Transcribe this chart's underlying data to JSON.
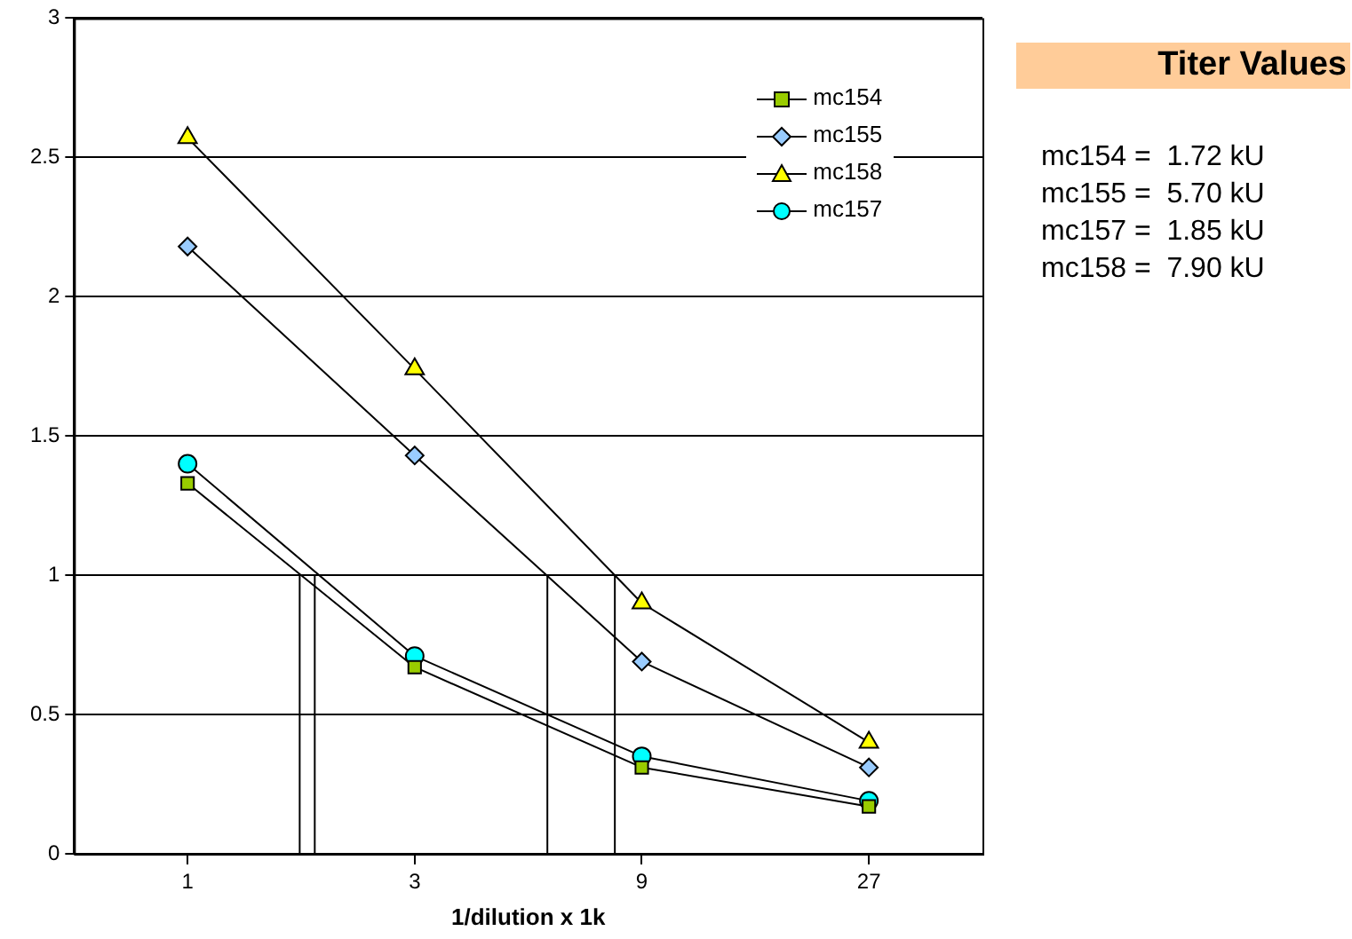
{
  "chart_data": {
    "type": "line",
    "xlabel": "1/dilution x 1k",
    "x": [
      1,
      3,
      9,
      27
    ],
    "xlim": [
      0.5774,
      46.77
    ],
    "xticks": [
      1,
      3,
      9,
      27
    ],
    "log": "x",
    "ylim": [
      0,
      3
    ],
    "yticks": [
      0,
      0.5,
      1,
      1.5,
      2,
      2.5,
      3
    ],
    "grid": "y",
    "legend": "top right",
    "series": [
      {
        "name": "mc154",
        "color": "#99cc00",
        "marker": "square",
        "values": [
          1.33,
          0.67,
          0.31,
          0.17
        ]
      },
      {
        "name": "mc155",
        "color": "#99ccff",
        "marker": "diamond",
        "values": [
          2.18,
          1.43,
          0.69,
          0.31
        ]
      },
      {
        "name": "mc158",
        "color": "#ffff00",
        "marker": "triangle",
        "values": [
          2.57,
          1.74,
          0.9,
          0.4
        ]
      },
      {
        "name": "mc157",
        "color": "#00ffff",
        "marker": "circle",
        "values": [
          1.4,
          0.71,
          0.35,
          0.19
        ]
      },
      {
        "color": "#000000",
        "marker": "none",
        "x": [
          1.72,
          1.72
        ],
        "values": [
          0,
          1
        ]
      },
      {
        "color": "#000000",
        "marker": "none",
        "x": [
          1.85,
          1.85
        ],
        "values": [
          0,
          1
        ]
      },
      {
        "color": "#000000",
        "marker": "none",
        "x": [
          5.7,
          5.7
        ],
        "values": [
          0,
          1
        ]
      },
      {
        "color": "#000000",
        "marker": "none",
        "x": [
          7.9,
          7.9
        ],
        "values": [
          0,
          1
        ]
      }
    ],
    "annotations": [
      "Titer Values",
      "mc154 =  1.72 kU",
      "mc155 =  5.70 kU",
      "mc157 =  1.85 kU",
      "mc158 =  7.90 kU"
    ]
  }
}
